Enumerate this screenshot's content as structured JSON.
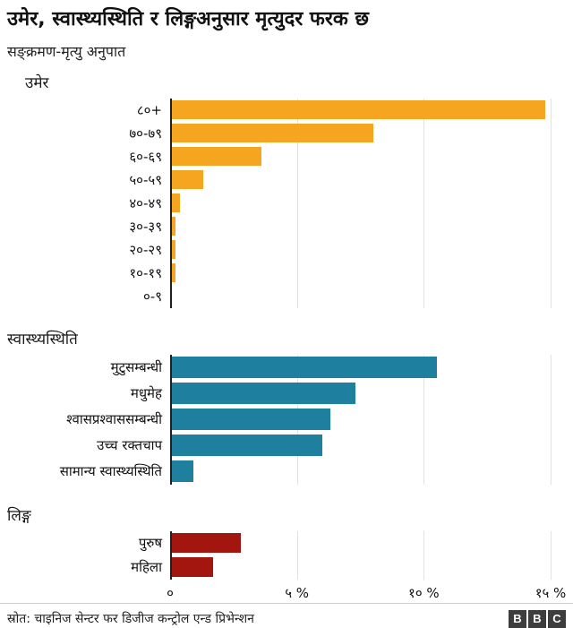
{
  "header": {
    "title": "उमेर, स्वास्थ्यस्थिति र लिङ्गअनुसार मृत्युदर फरक छ",
    "subtitle": "सङ्क्रमण-मृत्यु अनुपात"
  },
  "axis": {
    "max": 15.6,
    "ticks": [
      {
        "value": 0,
        "label": "०"
      },
      {
        "value": 5,
        "label": "५ %"
      },
      {
        "value": 10,
        "label": "१० %"
      },
      {
        "value": 15,
        "label": "१५ %"
      }
    ]
  },
  "chart_data": [
    {
      "type": "bar",
      "orientation": "horizontal",
      "title": "उमेर",
      "color": "#f6a521",
      "categories": [
        "८०+",
        "७०-७९",
        "६०-६९",
        "५०-५९",
        "४०-४९",
        "३०-३९",
        "२०-२९",
        "१०-१९",
        "०-९"
      ],
      "values": [
        14.8,
        8.0,
        3.6,
        1.3,
        0.4,
        0.2,
        0.2,
        0.2,
        0
      ],
      "xlabel": "",
      "ylabel": "",
      "xlim": [
        0,
        15.6
      ],
      "grid": "vertical-light"
    },
    {
      "type": "bar",
      "orientation": "horizontal",
      "title": "स्वास्थ्यस्थिति",
      "color": "#1e7f9f",
      "categories": [
        "मुटुसम्बन्धी",
        "मधुमेह",
        "श्वासप्रश्वाससम्बन्धी",
        "उच्च रक्तचाप",
        "सामान्य स्वास्थ्यस्थिति"
      ],
      "values": [
        10.5,
        7.3,
        6.3,
        6.0,
        0.9
      ],
      "xlabel": "",
      "ylabel": "",
      "xlim": [
        0,
        15.6
      ],
      "grid": "vertical-light"
    },
    {
      "type": "bar",
      "orientation": "horizontal",
      "title": "लिङ्ग",
      "color": "#a3150f",
      "categories": [
        "पुरुष",
        "महिला"
      ],
      "values": [
        2.8,
        1.7
      ],
      "xlabel": "",
      "ylabel": "",
      "xlim": [
        0,
        15.6
      ],
      "grid": "vertical-light"
    }
  ],
  "footer": {
    "source": "स्रोत: चाइनिज सेन्टर फर डिजीज कन्ट्रोल एन्ड प्रिभेन्शन",
    "logo_letters": [
      "B",
      "B",
      "C"
    ]
  }
}
